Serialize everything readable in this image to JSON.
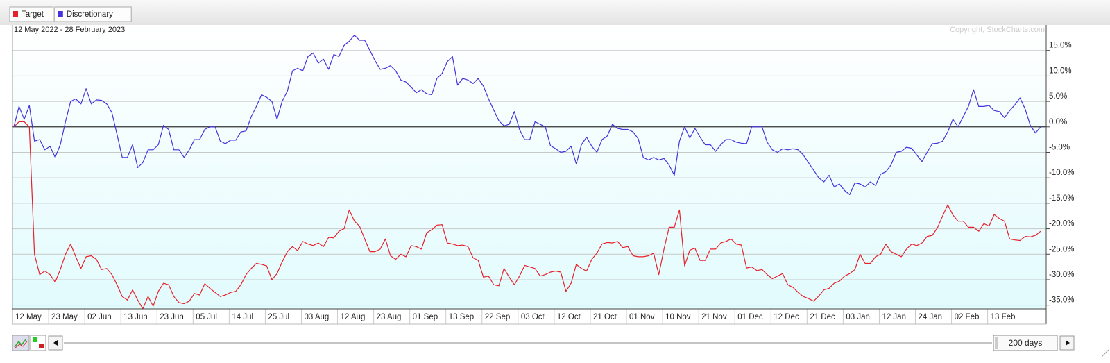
{
  "chart_data": {
    "type": "line",
    "subtitle": "12 May 2022 - 28 February 2023",
    "annotation": "Copyright, StockCharts.com",
    "categories": [
      "12 May",
      null,
      null,
      null,
      null,
      null,
      null,
      "23 May",
      null,
      null,
      null,
      null,
      null,
      null,
      "02 Jun",
      null,
      null,
      null,
      null,
      null,
      null,
      "13 Jun",
      null,
      null,
      null,
      null,
      null,
      null,
      "23 Jun",
      null,
      null,
      null,
      null,
      null,
      null,
      "05 Jul",
      null,
      null,
      null,
      null,
      null,
      null,
      "14 Jul",
      null,
      null,
      null,
      null,
      null,
      null,
      "25 Jul",
      null,
      null,
      null,
      null,
      null,
      null,
      "03 Aug",
      null,
      null,
      null,
      null,
      null,
      null,
      "12 Aug",
      null,
      null,
      null,
      null,
      null,
      null,
      "23 Aug",
      null,
      null,
      null,
      null,
      null,
      null,
      "01 Sep",
      null,
      null,
      null,
      null,
      null,
      null,
      "13 Sep",
      null,
      null,
      null,
      null,
      null,
      null,
      "22 Sep",
      null,
      null,
      null,
      null,
      null,
      null,
      "03 Oct",
      null,
      null,
      null,
      null,
      null,
      null,
      "12 Oct",
      null,
      null,
      null,
      null,
      null,
      null,
      "21 Oct",
      null,
      null,
      null,
      null,
      null,
      null,
      "01 Nov",
      null,
      null,
      null,
      null,
      null,
      null,
      "10 Nov",
      null,
      null,
      null,
      null,
      null,
      null,
      "21 Nov",
      null,
      null,
      null,
      null,
      null,
      null,
      "01 Dec",
      null,
      null,
      null,
      null,
      null,
      null,
      "12 Dec",
      null,
      null,
      null,
      null,
      null,
      null,
      "21 Dec",
      null,
      null,
      null,
      null,
      null,
      null,
      "03 Jan",
      null,
      null,
      null,
      null,
      null,
      null,
      "12 Jan",
      null,
      null,
      null,
      null,
      null,
      null,
      "24 Jan",
      null,
      null,
      null,
      null,
      null,
      null,
      "02 Feb",
      null,
      null,
      null,
      null,
      null,
      null,
      "13 Feb",
      null,
      null,
      null,
      null,
      null,
      null,
      null,
      null,
      null,
      null
    ],
    "series": [
      {
        "name": "Target",
        "color": "#e8202a",
        "values": [
          0,
          1,
          1,
          0,
          -25,
          -29,
          -28.3,
          -29,
          -30.5,
          -28,
          -25,
          -23,
          -25.5,
          -27.8,
          -25.5,
          -25.3,
          -26,
          -28,
          -27.8,
          -29,
          -31,
          -33.3,
          -34,
          -32,
          -34,
          -35.7,
          -33.3,
          -35.2,
          -32.3,
          -30.7,
          -31,
          -33.3,
          -34.5,
          -34.7,
          -34.2,
          -32.7,
          -33,
          -30.8,
          -31.7,
          -32.5,
          -33.3,
          -33,
          -32.5,
          -32.3,
          -31,
          -29,
          -27.8,
          -26.8,
          -27,
          -27.3,
          -30,
          -28.8,
          -26.5,
          -24.5,
          -23.5,
          -24.3,
          -22.5,
          -23,
          -23.3,
          -22.8,
          -23.5,
          -21.7,
          -21.8,
          -20.5,
          -20,
          -16.3,
          -18.5,
          -19.5,
          -22,
          -24.5,
          -24.5,
          -24,
          -22,
          -25.3,
          -26,
          -25,
          -25.5,
          -23.3,
          -23.5,
          -24,
          -20.8,
          -20.2,
          -19.3,
          -19.2,
          -22.8,
          -23,
          -23.3,
          -23.2,
          -23.5,
          -25.7,
          -26.2,
          -29.5,
          -29.3,
          -31,
          -31.2,
          -27.8,
          -29.5,
          -31,
          -29.3,
          -27.2,
          -27.5,
          -27.8,
          -29.3,
          -29,
          -28.5,
          -28.3,
          -28.5,
          -32.3,
          -30.7,
          -27,
          -27.8,
          -28.3,
          -26,
          -24.8,
          -23,
          -22.7,
          -22.8,
          -22.5,
          -23.7,
          -23.5,
          -25.3,
          -25.5,
          -25.5,
          -25.3,
          -24.8,
          -29,
          -24,
          -19.7,
          -19.7,
          -16.3,
          -27.3,
          -24.2,
          -23.8,
          -26.2,
          -26.2,
          -24,
          -24,
          -22.8,
          -22.5,
          -22,
          -23,
          -23.2,
          -27.7,
          -27.5,
          -28.2,
          -28,
          -29,
          -29.8,
          -29.3,
          -28.8,
          -31,
          -31.5,
          -32.5,
          -33.3,
          -33.7,
          -34.2,
          -33.2,
          -32,
          -31.7,
          -30.7,
          -30.3,
          -29.3,
          -28.8,
          -28,
          -25,
          -26.8,
          -26.8,
          -25.5,
          -25,
          -23,
          -24.5,
          -25,
          -25.5,
          -24,
          -23,
          -23.3,
          -22.8,
          -21.5,
          -21.3,
          -19.8,
          -17.5,
          -15.3,
          -17.3,
          -18.5,
          -18.5,
          -19.7,
          -19.7,
          -20.5,
          -19,
          -19.5,
          -17.2,
          -18,
          -18.5,
          -22,
          -22.2,
          -22.3,
          -21.5,
          -21.6,
          -21.3,
          -20.5
        ]
      },
      {
        "name": "Discretionary",
        "color": "#4433dd",
        "values": [
          0,
          4,
          1.5,
          4.2,
          -2.8,
          -2.5,
          -4.5,
          -3.8,
          -6,
          -3.5,
          1,
          5,
          5.5,
          4.5,
          7.5,
          4.5,
          5.3,
          5.2,
          4.5,
          2.8,
          -1.5,
          -6,
          -6,
          -3.5,
          -8,
          -7,
          -4.5,
          -4.5,
          -3.5,
          0.3,
          -0.5,
          -4.5,
          -4.5,
          -6,
          -4.5,
          -2.5,
          -2.5,
          -0.5,
          0,
          0,
          -2.8,
          -3.3,
          -2.6,
          -2.6,
          -1,
          -0.8,
          2,
          4,
          6.3,
          5.8,
          5,
          1.5,
          5,
          7,
          11,
          11.5,
          11,
          13.8,
          14.5,
          12.5,
          13.3,
          11.3,
          14.2,
          13.8,
          16,
          16.8,
          18,
          17,
          17,
          15,
          13,
          11.3,
          11.5,
          12,
          11,
          9.2,
          8.8,
          7.8,
          6.7,
          7.3,
          6.5,
          6.3,
          9.5,
          10.5,
          12.8,
          13.8,
          8.2,
          9.5,
          9.2,
          8.5,
          9.5,
          8,
          5.5,
          3.3,
          1.2,
          0.2,
          0.5,
          3,
          -0.5,
          -2.5,
          -2.5,
          1,
          0.5,
          0,
          -3.7,
          -4.3,
          -5,
          -4.8,
          -3.8,
          -7.3,
          -3.5,
          -2,
          -3.8,
          -5,
          -2.5,
          -1.8,
          0.5,
          -0.3,
          -0.5,
          -0.5,
          -1,
          -2.3,
          -6,
          -6.5,
          -6,
          -6.5,
          -6.2,
          -7.5,
          -9.5,
          -2.8,
          0,
          -2.2,
          -0.3,
          -2,
          -3.5,
          -3.5,
          -4.8,
          -3.5,
          -2.5,
          -2.5,
          -3,
          -3.2,
          -3.3,
          0,
          0,
          0,
          -3,
          -4.5,
          -5,
          -4.3,
          -4.5,
          -4.3,
          -4.5,
          -5.5,
          -7,
          -8.5,
          -10,
          -10.8,
          -9.5,
          -11.8,
          -11.2,
          -12.5,
          -13.3,
          -11,
          -11.2,
          -11.8,
          -10.8,
          -11.5,
          -9.3,
          -8.8,
          -7.5,
          -5,
          -4.8,
          -4,
          -4.2,
          -5.5,
          -6.8,
          -5,
          -3.3,
          -3.2,
          -2.8,
          -1,
          1.5,
          0,
          2,
          4,
          7.3,
          4,
          4,
          4.2,
          3.2,
          3,
          1.8,
          3.2,
          4.3,
          5.7,
          3.5,
          0.3,
          -1.2,
          0
        ]
      }
    ],
    "ylim": [
      -36,
      20
    ],
    "yticks": [
      {
        "value": 15,
        "label": "15.0%"
      },
      {
        "value": 10,
        "label": "10.0%"
      },
      {
        "value": 5,
        "label": "5.0%"
      },
      {
        "value": 0,
        "label": "0.0%"
      },
      {
        "value": -5,
        "label": "-5.0%"
      },
      {
        "value": -10,
        "label": "-10.0%"
      },
      {
        "value": -15,
        "label": "-15.0%"
      },
      {
        "value": -20,
        "label": "-20.0%"
      },
      {
        "value": -25,
        "label": "-25.0%"
      },
      {
        "value": -30,
        "label": "-30.0%"
      },
      {
        "value": -35,
        "label": "-35.0%"
      }
    ],
    "grid": true,
    "y_axis_side": "right",
    "legend_position": "top-left"
  },
  "controls": {
    "period": "200 days"
  }
}
